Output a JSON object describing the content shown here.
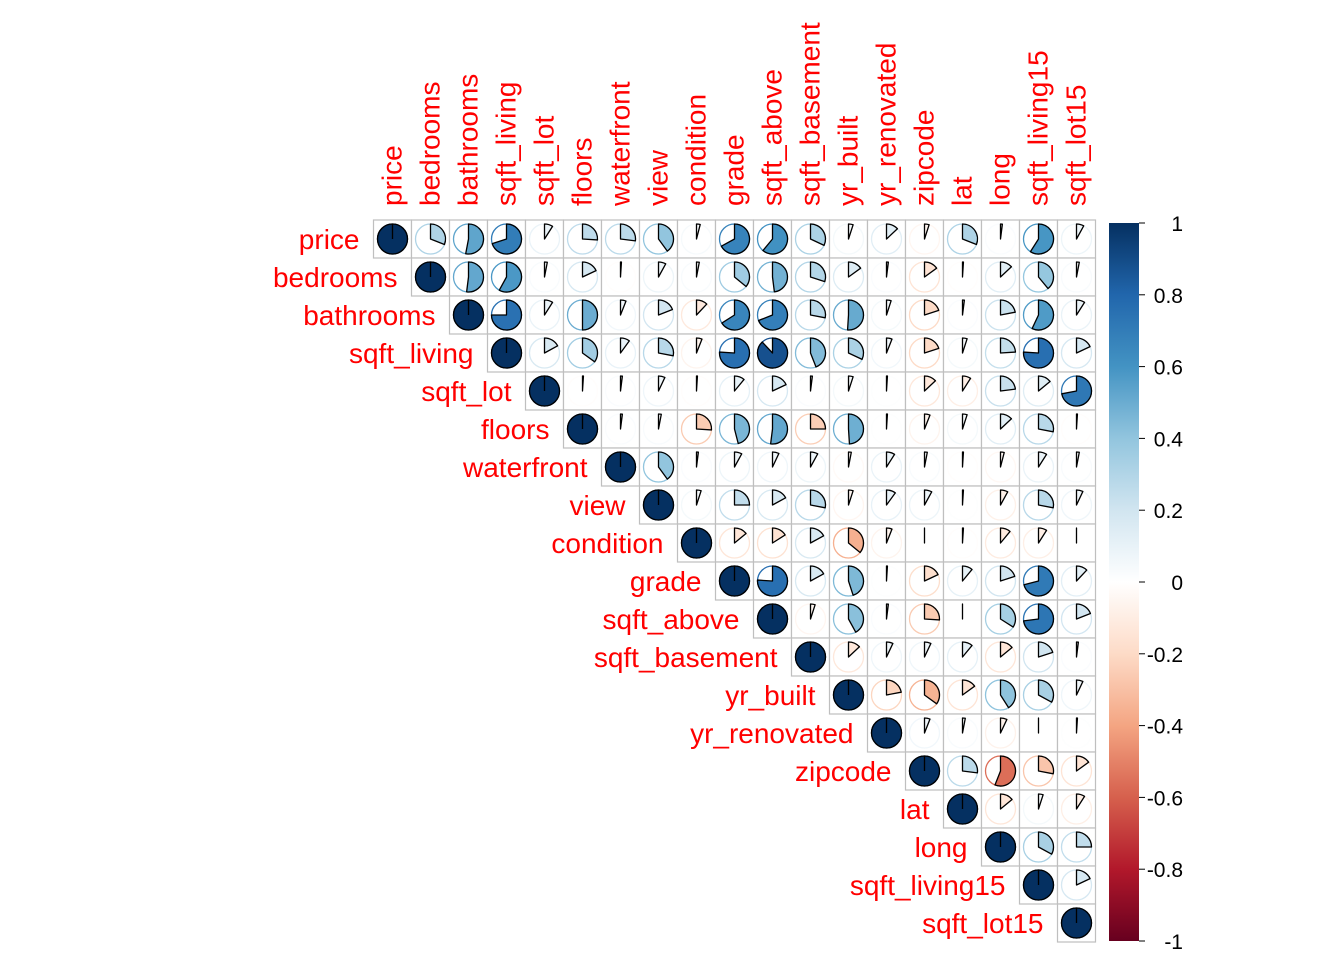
{
  "chart_data": {
    "type": "heatmap",
    "style": "corrplot-pie-upper",
    "variables": [
      "price",
      "bedrooms",
      "bathrooms",
      "sqft_living",
      "sqft_lot",
      "floors",
      "waterfront",
      "view",
      "condition",
      "grade",
      "sqft_above",
      "sqft_basement",
      "yr_built",
      "yr_renovated",
      "zipcode",
      "lat",
      "long",
      "sqft_living15",
      "sqft_lot15"
    ],
    "matrix": [
      [
        1,
        0.31,
        0.53,
        0.7,
        0.09,
        0.26,
        0.27,
        0.4,
        0.04,
        0.67,
        0.61,
        0.32,
        0.05,
        0.13,
        -0.05,
        0.31,
        0.02,
        0.59,
        0.08
      ],
      [
        0.31,
        1,
        0.52,
        0.58,
        0.03,
        0.18,
        -0.01,
        0.08,
        0.03,
        0.36,
        0.48,
        0.3,
        0.15,
        0.02,
        -0.15,
        -0.01,
        0.13,
        0.39,
        0.03
      ],
      [
        0.53,
        0.52,
        1,
        0.75,
        0.09,
        0.5,
        0.06,
        0.19,
        -0.12,
        0.66,
        0.69,
        0.28,
        0.51,
        0.05,
        -0.2,
        0.02,
        0.22,
        0.57,
        0.09
      ],
      [
        0.7,
        0.58,
        0.75,
        1,
        0.17,
        0.35,
        0.1,
        0.28,
        -0.06,
        0.76,
        0.88,
        0.44,
        0.32,
        0.06,
        -0.2,
        0.05,
        0.24,
        0.76,
        0.18
      ],
      [
        0.09,
        0.03,
        0.09,
        0.17,
        1,
        -0.01,
        0.02,
        0.07,
        -0.01,
        0.11,
        0.18,
        0.02,
        0.05,
        0.01,
        -0.13,
        -0.09,
        0.23,
        0.14,
        0.72
      ],
      [
        0.26,
        0.18,
        0.5,
        0.35,
        -0.01,
        1,
        0.02,
        0.03,
        -0.26,
        0.46,
        0.52,
        -0.25,
        0.49,
        0.01,
        -0.06,
        0.05,
        0.13,
        0.28,
        -0.01
      ],
      [
        0.27,
        -0.01,
        0.06,
        0.1,
        0.02,
        0.02,
        1,
        0.4,
        0.02,
        0.08,
        0.07,
        0.08,
        -0.03,
        0.09,
        0.03,
        -0.01,
        -0.04,
        0.09,
        0.03
      ],
      [
        0.4,
        0.08,
        0.19,
        0.28,
        0.07,
        0.03,
        0.4,
        1,
        0.05,
        0.25,
        0.17,
        0.28,
        -0.05,
        0.1,
        0.08,
        0.01,
        -0.08,
        0.28,
        0.07
      ],
      [
        0.04,
        0.03,
        -0.12,
        -0.06,
        -0.01,
        -0.26,
        0.02,
        0.05,
        1,
        -0.14,
        -0.16,
        0.17,
        -0.36,
        -0.06,
        0.0,
        -0.01,
        -0.11,
        -0.09,
        -0.0
      ],
      [
        0.67,
        0.36,
        0.66,
        0.76,
        0.11,
        0.46,
        0.08,
        0.25,
        -0.14,
        1,
        0.76,
        0.17,
        0.45,
        0.01,
        -0.18,
        0.11,
        0.2,
        0.71,
        0.12
      ],
      [
        0.61,
        0.48,
        0.69,
        0.88,
        0.18,
        0.52,
        0.07,
        0.17,
        -0.16,
        0.76,
        1,
        -0.05,
        0.42,
        0.02,
        -0.26,
        -0.0,
        0.34,
        0.73,
        0.19
      ],
      [
        0.32,
        0.3,
        0.28,
        0.44,
        0.02,
        -0.25,
        0.08,
        0.28,
        0.17,
        0.17,
        -0.05,
        1,
        -0.13,
        0.07,
        0.07,
        0.11,
        -0.14,
        0.2,
        0.02
      ],
      [
        0.05,
        0.15,
        0.51,
        0.32,
        0.05,
        0.49,
        -0.03,
        -0.05,
        -0.36,
        0.45,
        0.42,
        -0.13,
        1,
        -0.22,
        -0.35,
        -0.15,
        0.41,
        0.33,
        0.07
      ],
      [
        0.13,
        0.02,
        0.05,
        0.06,
        0.01,
        0.01,
        0.09,
        0.1,
        -0.06,
        0.01,
        0.02,
        0.07,
        -0.22,
        1,
        0.06,
        0.03,
        -0.07,
        -0.0,
        0.01
      ],
      [
        -0.05,
        -0.15,
        -0.2,
        -0.2,
        -0.13,
        -0.06,
        0.03,
        0.08,
        0.0,
        -0.18,
        -0.26,
        0.07,
        -0.35,
        0.06,
        1,
        0.27,
        -0.56,
        -0.28,
        -0.15
      ],
      [
        0.31,
        -0.01,
        0.02,
        0.05,
        -0.09,
        0.05,
        -0.01,
        0.01,
        -0.01,
        0.11,
        -0.0,
        0.11,
        -0.15,
        0.03,
        0.27,
        1,
        -0.14,
        0.05,
        -0.09
      ],
      [
        0.02,
        0.13,
        0.22,
        0.24,
        0.23,
        0.13,
        -0.04,
        -0.08,
        -0.11,
        0.2,
        0.34,
        -0.14,
        0.41,
        -0.07,
        -0.56,
        -0.14,
        1,
        0.33,
        0.25
      ],
      [
        0.59,
        0.39,
        0.57,
        0.76,
        0.14,
        0.28,
        0.09,
        0.28,
        -0.09,
        0.71,
        0.73,
        0.2,
        0.33,
        -0.0,
        -0.28,
        0.05,
        0.33,
        1,
        0.18
      ],
      [
        0.08,
        0.03,
        0.09,
        0.18,
        0.72,
        -0.01,
        0.03,
        0.07,
        -0.0,
        0.12,
        0.19,
        0.02,
        0.07,
        0.01,
        -0.15,
        -0.09,
        0.25,
        0.18,
        1
      ]
    ],
    "color_range": [
      -1,
      1
    ],
    "color_ticks": [
      1,
      0.8,
      0.6,
      0.4,
      0.2,
      0,
      -0.2,
      -0.4,
      -0.6,
      -0.8,
      -1
    ],
    "color_tick_labels": [
      "1",
      "0.8",
      "0.6",
      "0.4",
      "0.2",
      "0",
      "-0.2",
      "-0.4",
      "-0.6",
      "-0.8",
      "-1"
    ],
    "colorbar_placement": "right",
    "label_color": "#ff0000",
    "palette": [
      "#67001f",
      "#b2182b",
      "#d6604d",
      "#f4a582",
      "#fddbc7",
      "#ffffff",
      "#d1e5f0",
      "#92c5de",
      "#4393c3",
      "#2166ac",
      "#053061"
    ]
  }
}
